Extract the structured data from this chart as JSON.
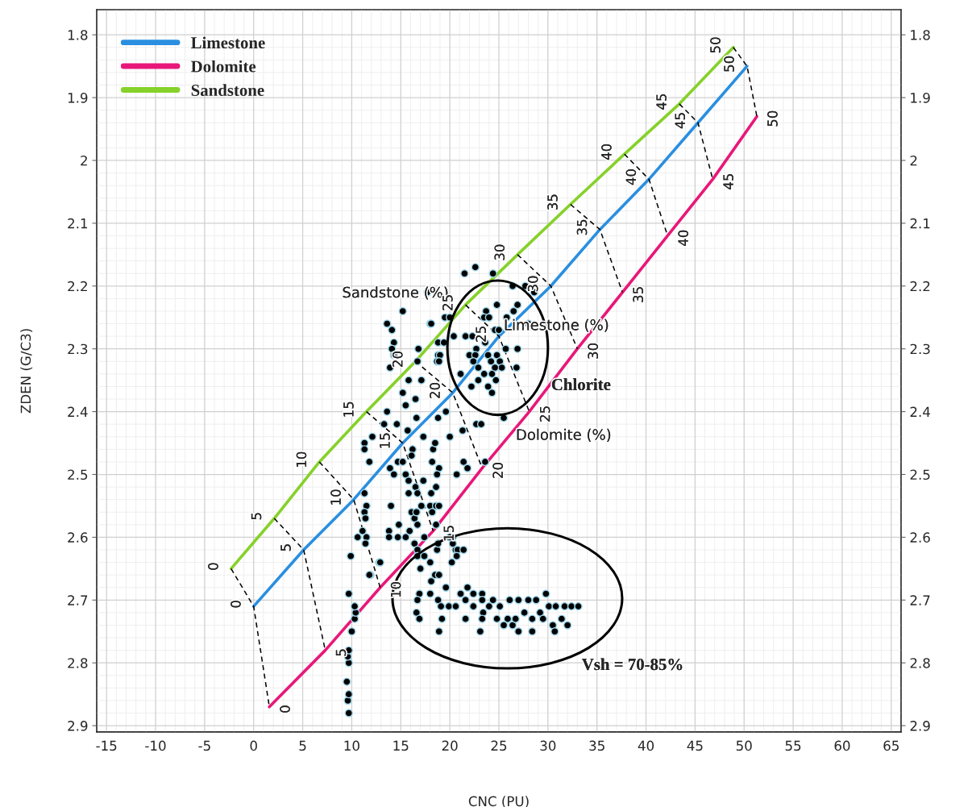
{
  "chart_data": {
    "type": "scatter",
    "xlabel": "CNC (PU)",
    "ylabel": "ZDEN (G/C3)",
    "xlim": [
      -16,
      66
    ],
    "xticks": [
      -15,
      -10,
      -5,
      0,
      5,
      10,
      15,
      20,
      25,
      30,
      35,
      40,
      45,
      50,
      55,
      60,
      65
    ],
    "ylim": [
      2.91,
      1.76
    ],
    "yticks": [
      1.8,
      1.9,
      2,
      2.1,
      2.2,
      2.3,
      2.4,
      2.5,
      2.6,
      2.7,
      2.8,
      2.9
    ],
    "y2lim": [
      2.91,
      1.76
    ],
    "y2ticks": [
      1.8,
      1.9,
      2,
      2.1,
      2.2,
      2.3,
      2.4,
      2.5,
      2.6,
      2.7,
      2.8,
      2.9
    ],
    "grid": true,
    "legend": "top left",
    "annotations": [
      "Sandstone (%)",
      "Limestone (%)",
      "Dolomite (%)",
      "Chlorite",
      "Vsh = 70-85%",
      {
        "text": "0",
        "x": 0,
        "y": 2.71
      },
      {
        "text": "5",
        "x": 5.1,
        "y": 2.62
      },
      {
        "text": "10",
        "x": 10.2,
        "y": 2.54
      },
      {
        "text": "15",
        "x": 15.2,
        "y": 2.45
      },
      {
        "text": "20",
        "x": 20.3,
        "y": 2.37
      },
      {
        "text": "25",
        "x": 25.0,
        "y": 2.28
      },
      {
        "text": "30",
        "x": 30.3,
        "y": 2.2
      },
      {
        "text": "35",
        "x": 35.3,
        "y": 2.11
      },
      {
        "text": "40",
        "x": 40.3,
        "y": 2.03
      },
      {
        "text": "45",
        "x": 45.3,
        "y": 1.94
      },
      {
        "text": "50",
        "x": 50.3,
        "y": 1.85
      },
      {
        "text": "0",
        "x": 1.6,
        "y": 2.87
      },
      {
        "text": "5",
        "x": 7.3,
        "y": 2.78
      },
      {
        "text": "10",
        "x": 12.9,
        "y": 2.68
      },
      {
        "text": "15",
        "x": 18.3,
        "y": 2.59
      },
      {
        "text": "20",
        "x": 23.3,
        "y": 2.49
      },
      {
        "text": "25",
        "x": 28.1,
        "y": 2.4
      },
      {
        "text": "30",
        "x": 33.0,
        "y": 2.3
      },
      {
        "text": "35",
        "x": 37.6,
        "y": 2.21
      },
      {
        "text": "40",
        "x": 42.2,
        "y": 2.12
      },
      {
        "text": "45",
        "x": 46.8,
        "y": 2.03
      },
      {
        "text": "50",
        "x": 51.3,
        "y": 1.93
      },
      {
        "text": "0",
        "x": -2.3,
        "y": 2.65
      },
      {
        "text": "5",
        "x": 2.1,
        "y": 2.57
      },
      {
        "text": "10",
        "x": 6.7,
        "y": 2.48
      },
      {
        "text": "15",
        "x": 11.5,
        "y": 2.4
      },
      {
        "text": "20",
        "x": 16.5,
        "y": 2.32
      },
      {
        "text": "25",
        "x": 21.6,
        "y": 2.23
      },
      {
        "text": "30",
        "x": 26.9,
        "y": 2.15
      },
      {
        "text": "35",
        "x": 32.3,
        "y": 2.07
      },
      {
        "text": "40",
        "x": 37.8,
        "y": 1.99
      },
      {
        "text": "45",
        "x": 43.4,
        "y": 1.91
      },
      {
        "text": "50",
        "x": 48.9,
        "y": 1.82
      }
    ],
    "series": [
      {
        "name": "Limestone",
        "type": "line",
        "color": "#2a8fe0",
        "x": [
          0,
          5.1,
          10.2,
          15.2,
          20.3,
          25.0,
          30.3,
          35.3,
          40.3,
          45.3,
          50.3
        ],
        "values": [
          2.71,
          2.62,
          2.54,
          2.45,
          2.37,
          2.28,
          2.2,
          2.11,
          2.03,
          1.94,
          1.85
        ]
      },
      {
        "name": "Dolomite",
        "type": "line",
        "color": "#e8187a",
        "x": [
          1.6,
          7.3,
          12.9,
          18.3,
          23.3,
          28.1,
          33.0,
          37.6,
          42.2,
          46.8,
          51.3
        ],
        "values": [
          2.87,
          2.78,
          2.68,
          2.59,
          2.49,
          2.4,
          2.3,
          2.21,
          2.12,
          2.03,
          1.93
        ]
      },
      {
        "name": "Sandstone",
        "type": "line",
        "color": "#86d12a",
        "x": [
          -2.3,
          2.1,
          6.7,
          11.5,
          16.5,
          21.6,
          26.9,
          32.3,
          37.8,
          43.4,
          48.9
        ],
        "values": [
          2.65,
          2.57,
          2.48,
          2.4,
          2.32,
          2.23,
          2.15,
          2.07,
          1.99,
          1.91,
          1.82
        ]
      },
      {
        "type": "line",
        "color": "#000000",
        "line_style": "dashed",
        "x": [
          -2.3,
          0,
          1.6,
          null,
          2.1,
          5.1,
          7.3,
          null,
          6.7,
          10.2,
          12.9,
          null,
          11.5,
          15.2,
          18.3,
          null,
          16.5,
          20.3,
          23.3,
          null,
          21.6,
          25.0,
          28.1,
          null,
          26.9,
          30.3,
          33.0,
          null,
          32.3,
          35.3,
          37.6,
          null,
          37.8,
          40.3,
          42.2,
          null,
          43.4,
          45.3,
          46.8,
          null,
          48.9,
          50.3,
          51.3
        ],
        "values": [
          2.65,
          2.71,
          2.87,
          null,
          2.57,
          2.62,
          2.78,
          null,
          2.48,
          2.54,
          2.68,
          null,
          2.4,
          2.45,
          2.59,
          null,
          2.32,
          2.37,
          2.49,
          null,
          2.23,
          2.28,
          2.4,
          null,
          2.15,
          2.2,
          2.3,
          null,
          2.07,
          2.11,
          2.21,
          null,
          1.99,
          2.03,
          2.12,
          null,
          1.91,
          1.94,
          2.03,
          null,
          1.82,
          1.85,
          1.93
        ]
      },
      {
        "color": "#000000",
        "marker": "circle",
        "x": [
          9.7,
          9.6,
          9.7,
          9.5,
          9.7,
          9.6,
          9.7,
          10.0,
          10.3,
          10.4,
          10.3,
          9.7,
          9.9,
          11.3,
          11.5,
          11.3,
          11.4,
          11.1,
          10.6,
          11.5,
          11.4,
          11.9,
          12.8,
          14.0,
          14.8,
          14.7,
          13.6,
          14.1,
          14.3,
          14.1,
          14.3,
          13.9,
          15.2,
          18.0,
          16.8,
          15.8,
          15.2,
          15.5,
          16.5,
          16.6,
          13.6,
          13.3,
          14.6,
          15.7,
          17.3,
          12.1,
          11.3,
          11.3,
          11.8,
          13.9,
          14.3,
          14.7,
          15.2,
          16.2,
          16.1,
          18.3,
          18.5,
          18.2,
          18.9,
          15.5,
          15.8,
          16.5,
          17.3,
          18.1,
          18.6,
          16.7,
          17.1,
          16.1,
          18.0,
          18.6,
          16.4,
          18.2,
          16.7,
          15.5,
          17.4,
          13.8,
          13.8,
          18.7,
          16.4,
          16.7,
          20.6,
          20.8,
          20.3,
          19.6,
          20.0,
          21.3,
          18.8,
          21.4,
          20.7,
          21.8,
          22.7,
          23.2,
          25.5,
          23.6,
          18.8,
          18.7,
          17.1,
          16.7,
          22.6,
          21.5,
          24.4,
          26.4,
          27.7,
          28.6,
          24.8,
          26.9,
          23.7,
          25.8,
          26.5,
          19.5,
          20.0,
          23.5,
          24.0,
          28.0,
          24.6,
          25.0,
          21.6,
          22.3,
          23.6,
          22.7,
          26.9,
          25.7,
          22.0,
          22.6,
          24.8,
          23.9,
          25.1,
          22.4,
          24.2,
          25.3,
          26.8,
          22.9,
          24.6,
          23.5,
          21.1,
          24.3,
          22.9,
          23.9,
          24.7,
          22.2,
          24.3,
          18.1,
          18.8,
          19.4,
          20.4,
          19.0,
          18.9,
          16.5,
          17.7,
          15.8,
          12.9,
          11.8,
          15.9,
          16.6,
          18.6,
          18.9,
          18.7,
          18.8,
          20.3,
          20.0,
          16.7,
          17.4,
          17.0,
          18.0,
          18.5,
          18.1,
          18.9,
          19.6,
          20.2,
          20.7,
          21.4,
          16.9,
          16.7,
          18.0,
          18.8,
          19.1,
          16.6,
          16.9,
          19.2,
          18.9,
          19.9,
          20.6,
          21.1,
          21.8,
          22.4,
          21.6,
          22.4,
          23.3,
          23.3,
          24.0,
          23.4,
          21.6,
          23.3,
          23.1,
          24.4,
          25.1,
          26.1,
          24.8,
          25.9,
          25.5,
          26.4,
          27.0,
          27.0,
          26.7,
          27.6,
          28.4,
          28.0,
          28.8,
          29.2,
          28.4,
          29.8,
          30.1,
          29.5,
          30.5,
          30.8,
          31.4,
          32.0,
          30.7,
          31.7,
          32.4,
          33.1
        ],
        "values": [
          2.88,
          2.86,
          2.85,
          2.83,
          2.8,
          2.79,
          2.78,
          2.75,
          2.73,
          2.72,
          2.71,
          2.69,
          2.63,
          2.53,
          2.55,
          2.56,
          2.57,
          2.59,
          2.6,
          2.6,
          2.61,
          2.66,
          2.64,
          2.55,
          2.58,
          2.6,
          2.26,
          2.27,
          2.29,
          2.3,
          2.31,
          2.33,
          2.24,
          2.26,
          2.3,
          2.35,
          2.37,
          2.39,
          2.38,
          2.41,
          2.4,
          2.42,
          2.42,
          2.43,
          2.44,
          2.44,
          2.45,
          2.46,
          2.48,
          2.49,
          2.5,
          2.48,
          2.48,
          2.46,
          2.47,
          2.46,
          2.45,
          2.48,
          2.49,
          2.5,
          2.51,
          2.52,
          2.51,
          2.53,
          2.52,
          2.53,
          2.55,
          2.56,
          2.55,
          2.55,
          2.57,
          2.56,
          2.58,
          2.6,
          2.6,
          2.59,
          2.6,
          2.62,
          2.61,
          2.62,
          2.62,
          2.62,
          2.6,
          2.4,
          2.44,
          2.43,
          2.41,
          2.48,
          2.5,
          2.49,
          2.42,
          2.42,
          2.41,
          2.48,
          2.31,
          2.32,
          2.35,
          2.32,
          2.17,
          2.18,
          2.18,
          2.2,
          2.2,
          2.21,
          2.23,
          2.23,
          2.24,
          2.25,
          2.24,
          2.25,
          2.25,
          2.25,
          2.25,
          2.26,
          2.27,
          2.27,
          2.28,
          2.28,
          2.29,
          2.3,
          2.3,
          2.3,
          2.31,
          2.31,
          2.31,
          2.31,
          2.32,
          2.32,
          2.32,
          2.33,
          2.33,
          2.33,
          2.33,
          2.34,
          2.34,
          2.34,
          2.35,
          2.36,
          2.35,
          2.36,
          2.37,
          2.26,
          2.29,
          2.29,
          2.28,
          2.31,
          2.32,
          2.21,
          2.21,
          2.53,
          2.64,
          2.66,
          2.59,
          2.56,
          2.58,
          2.55,
          2.5,
          2.61,
          2.61,
          2.6,
          2.63,
          2.63,
          2.65,
          2.64,
          2.66,
          2.67,
          2.66,
          2.68,
          2.64,
          2.63,
          2.62,
          2.69,
          2.7,
          2.69,
          2.7,
          2.71,
          2.72,
          2.73,
          2.73,
          2.75,
          2.71,
          2.71,
          2.69,
          2.68,
          2.69,
          2.7,
          2.71,
          2.69,
          2.7,
          2.71,
          2.72,
          2.73,
          2.73,
          2.75,
          2.7,
          2.71,
          2.7,
          2.73,
          2.73,
          2.74,
          2.74,
          2.75,
          2.7,
          2.73,
          2.72,
          2.73,
          2.7,
          2.7,
          2.72,
          2.75,
          2.69,
          2.71,
          2.73,
          2.74,
          2.71,
          2.73,
          2.74,
          2.75,
          2.71,
          2.71,
          2.71
        ]
      }
    ]
  }
}
